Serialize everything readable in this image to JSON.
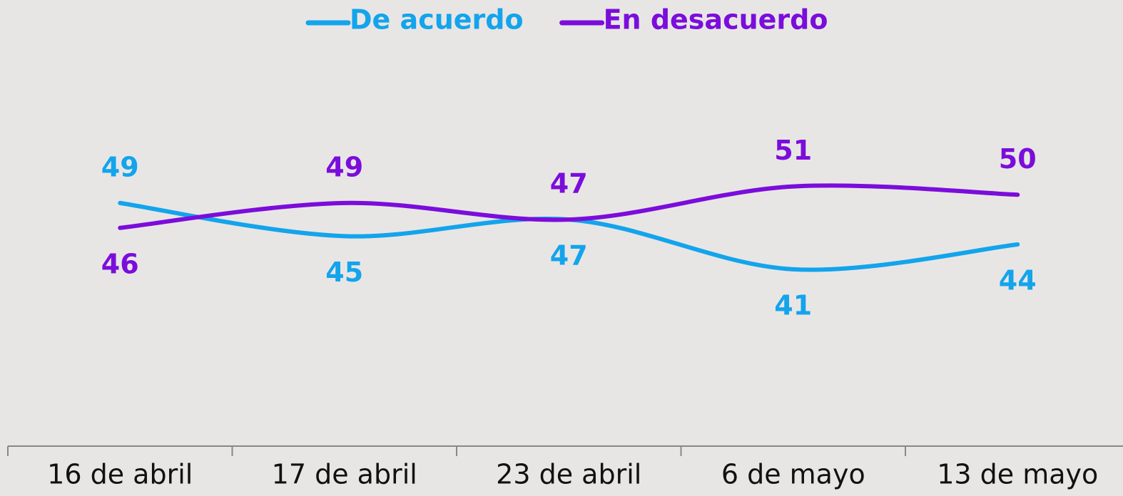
{
  "chart_data": {
    "type": "line",
    "categories": [
      "16 de abril",
      "17 de abril",
      "23 de abril",
      "6 de mayo",
      "13 de mayo"
    ],
    "series": [
      {
        "name": "De acuerdo",
        "color": "#13a4ec",
        "values": [
          49,
          45,
          47,
          41,
          44
        ]
      },
      {
        "name": "En desacuerdo",
        "color": "#7b0ddb",
        "values": [
          46,
          49,
          47,
          51,
          50
        ]
      }
    ],
    "ylim": [
      20,
      60
    ],
    "legend": "top"
  }
}
